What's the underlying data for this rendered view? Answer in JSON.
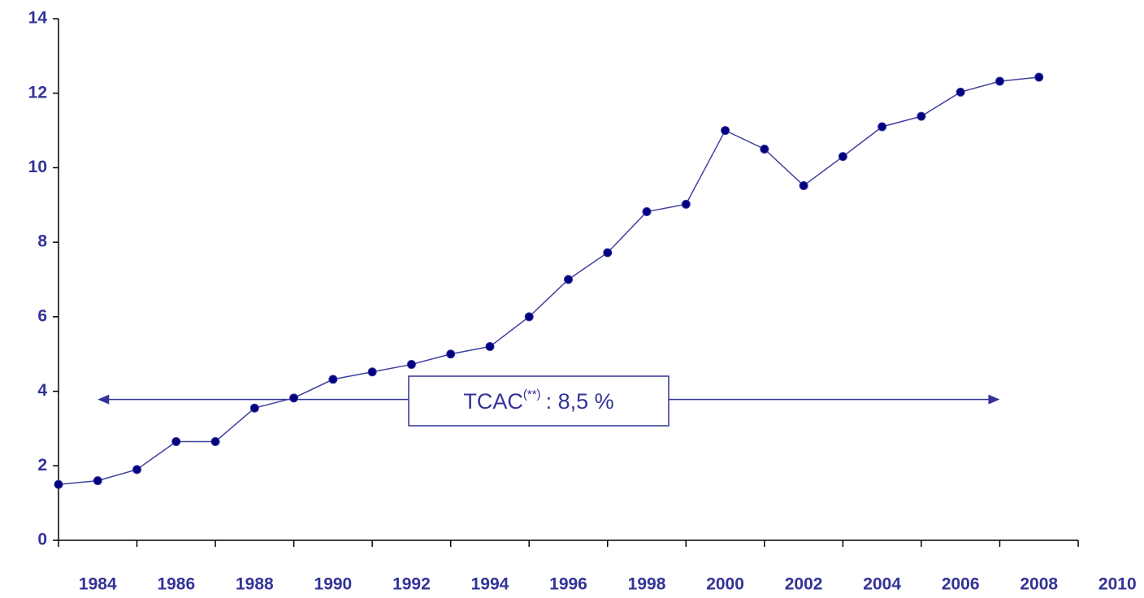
{
  "chart_data": {
    "type": "line",
    "x": [
      1983,
      1984,
      1985,
      1986,
      1987,
      1988,
      1989,
      1990,
      1991,
      1992,
      1993,
      1994,
      1995,
      1996,
      1997,
      1998,
      1999,
      2000,
      2001,
      2002,
      2003,
      2004,
      2005,
      2006,
      2007,
      2008
    ],
    "series": [
      {
        "color": "#4040a0",
        "marker_color": "#000080",
        "values": [
          1.5,
          1.6,
          1.9,
          2.65,
          2.65,
          3.55,
          3.82,
          4.32,
          4.52,
          4.72,
          5.0,
          5.2,
          6.0,
          7.0,
          7.72,
          8.82,
          9.02,
          11.0,
          10.5,
          9.52,
          10.3,
          11.1,
          11.38,
          12.03,
          12.32,
          12.43
        ]
      }
    ],
    "xlim": [
      1983,
      2009
    ],
    "xticks": [
      1984,
      1986,
      1988,
      1990,
      1992,
      1994,
      1996,
      1998,
      2000,
      2002,
      2004,
      2006,
      2008,
      2010
    ],
    "xtick_marks": [
      1983,
      1985,
      1987,
      1989,
      1991,
      1993,
      1995,
      1997,
      1999,
      2001,
      2003,
      2005,
      2007,
      2009
    ],
    "ylim": [
      0,
      14
    ],
    "yticks": [
      0,
      2,
      4,
      6,
      8,
      10,
      12,
      14
    ],
    "grid": false,
    "annotation": {
      "text": "TCAC",
      "superscript": "(**)",
      "suffix": ": 8,5 %",
      "x_from": 1984,
      "x_to": 2007,
      "y": 3.78
    }
  }
}
